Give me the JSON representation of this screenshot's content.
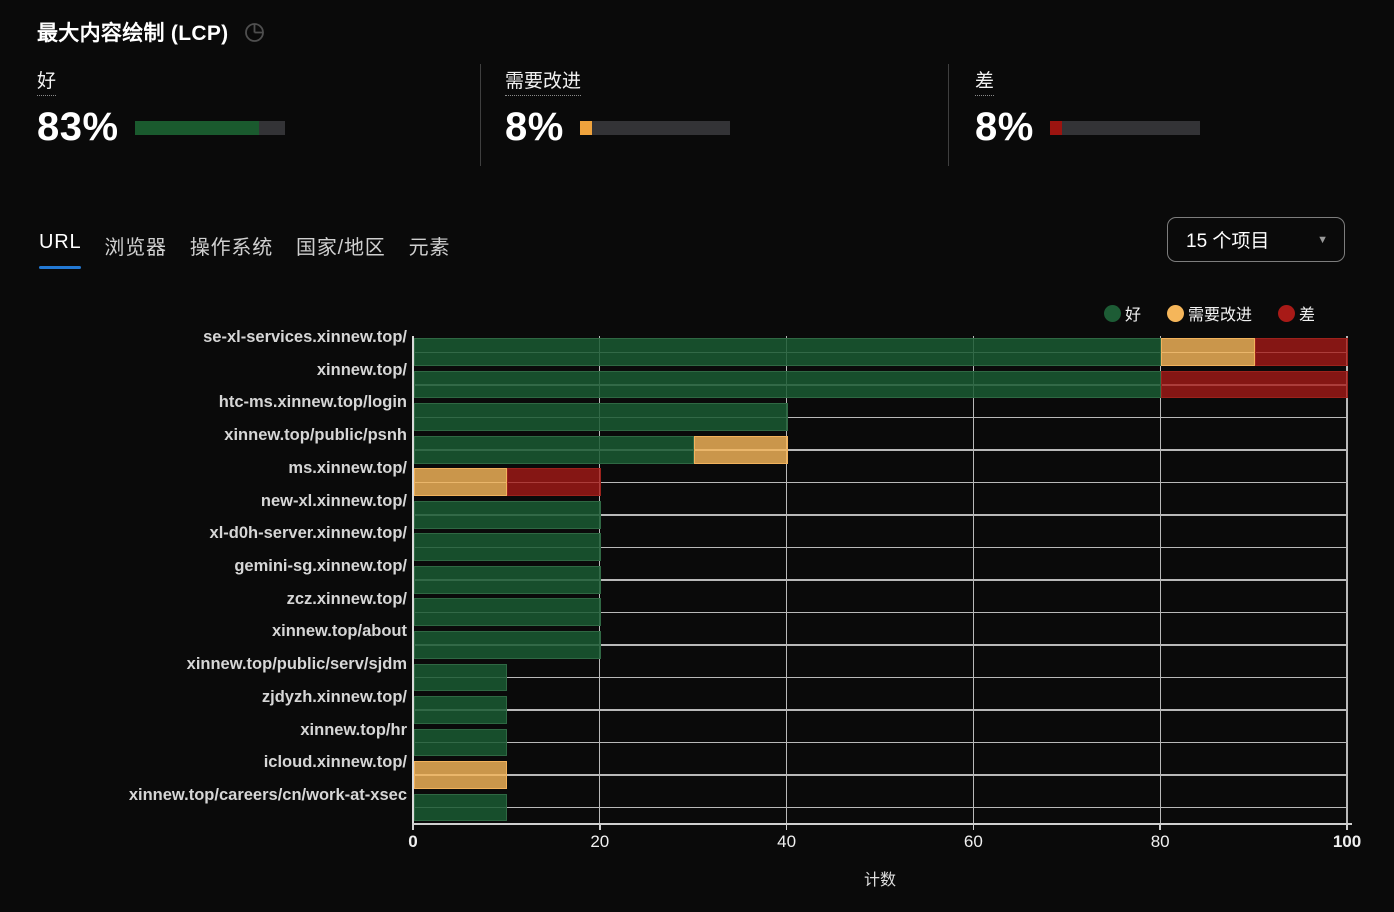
{
  "header": {
    "title": "最大内容绘制 (LCP)",
    "icon": "pie-chart-icon"
  },
  "summary": {
    "cards": [
      {
        "label": "好",
        "value": "83%",
        "percent": 83,
        "color": "#1a5a2e"
      },
      {
        "label": "需要改进",
        "value": "8%",
        "percent": 8,
        "color": "#efa33d"
      },
      {
        "label": "差",
        "value": "8%",
        "percent": 8,
        "color": "#9c1410"
      }
    ]
  },
  "tabs": [
    {
      "label": "URL",
      "active": true
    },
    {
      "label": "浏览器",
      "active": false
    },
    {
      "label": "操作系统",
      "active": false
    },
    {
      "label": "国家/地区",
      "active": false
    },
    {
      "label": "元素",
      "active": false
    }
  ],
  "dropdown": {
    "value": "15 个项目"
  },
  "legend": [
    {
      "label": "好",
      "color": "#1d5c35"
    },
    {
      "label": "需要改进",
      "color": "#f5b65a"
    },
    {
      "label": "差",
      "color": "#a81a17"
    }
  ],
  "chart_data": {
    "type": "bar",
    "orientation": "horizontal",
    "stacked": true,
    "grid": true,
    "xlabel": "计数",
    "xlim": [
      0,
      100
    ],
    "xticks": [
      "0",
      "20",
      "40",
      "60",
      "80",
      "100"
    ],
    "categories": [
      "se-xl-services.xinnew.top/",
      "xinnew.top/",
      "htc-ms.xinnew.top/login",
      "xinnew.top/public/psnh",
      "ms.xinnew.top/",
      "new-xl.xinnew.top/",
      "xl-d0h-server.xinnew.top/",
      "gemini-sg.xinnew.top/",
      "zcz.xinnew.top/",
      "xinnew.top/about",
      "xinnew.top/public/serv/sjdm",
      "zjdyzh.xinnew.top/",
      "xinnew.top/hr",
      "icloud.xinnew.top/",
      "xinnew.top/careers/cn/work-at-xsec"
    ],
    "series": [
      {
        "name": "好",
        "fill": "rgba(26,90,51,0.85)",
        "stroke": "#2f6843",
        "values": [
          80,
          80,
          40,
          30,
          0,
          20,
          20,
          20,
          20,
          20,
          10,
          10,
          10,
          0,
          10
        ]
      },
      {
        "name": "需要改进",
        "fill": "rgba(245,182,90,0.82)",
        "stroke": "#f2b25c",
        "values": [
          10,
          0,
          0,
          10,
          10,
          0,
          0,
          0,
          0,
          0,
          0,
          0,
          0,
          10,
          0
        ]
      },
      {
        "name": "差",
        "fill": "rgba(168,26,23,0.78)",
        "stroke": "#9c221c",
        "values": [
          10,
          20,
          0,
          0,
          10,
          0,
          0,
          0,
          0,
          0,
          0,
          0,
          0,
          0,
          0
        ]
      }
    ]
  }
}
